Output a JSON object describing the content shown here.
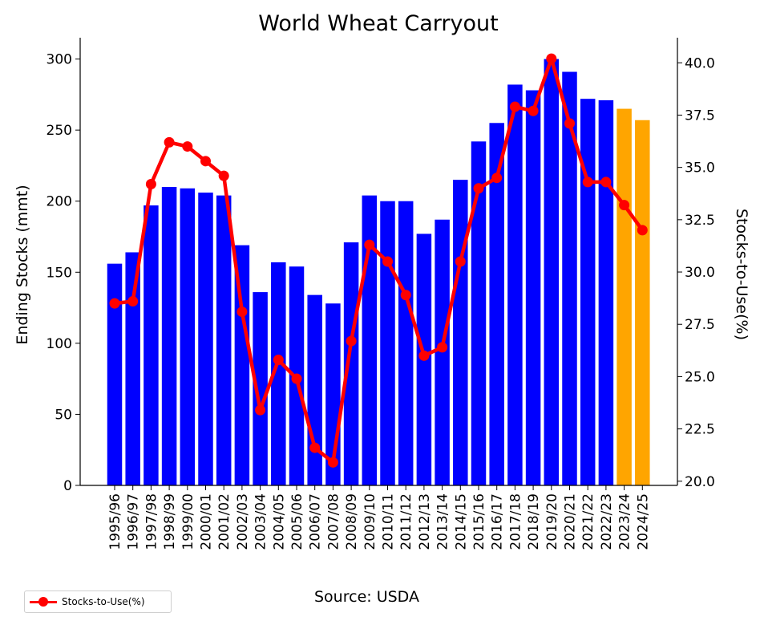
{
  "chart_data": {
    "type": "bar",
    "title": "World Wheat Carryout",
    "ylabel": "Ending Stocks (mmt)",
    "y2label": "Stocks-to-Use(%)",
    "ylim": [
      0,
      315
    ],
    "y2lim": [
      19.8,
      41.2
    ],
    "yticks": [
      "0",
      "50",
      "100",
      "150",
      "200",
      "250",
      "300"
    ],
    "y2ticks": [
      "20.0",
      "22.5",
      "25.0",
      "27.5",
      "30.0",
      "32.5",
      "35.0",
      "37.5",
      "40.0"
    ],
    "categories": [
      "1995/96",
      "1996/97",
      "1997/98",
      "1998/99",
      "1999/00",
      "2000/01",
      "2001/02",
      "2002/03",
      "2003/04",
      "2004/05",
      "2005/06",
      "2006/07",
      "2007/08",
      "2008/09",
      "2009/10",
      "2010/11",
      "2011/12",
      "2012/13",
      "2013/14",
      "2014/15",
      "2015/16",
      "2016/17",
      "2017/18",
      "2018/19",
      "2019/20",
      "2020/21",
      "2021/22",
      "2022/23",
      "2023/24",
      "2024/25"
    ],
    "series": [
      {
        "axis": "left",
        "type": "bar",
        "values": [
          156,
          164,
          197,
          210,
          209,
          206,
          204,
          169,
          136,
          157,
          154,
          134,
          128,
          171,
          204,
          200,
          200,
          177,
          187,
          215,
          242,
          255,
          282,
          278,
          300,
          291,
          272,
          271,
          265,
          257
        ],
        "colors": [
          "#0000ff",
          "#0000ff",
          "#0000ff",
          "#0000ff",
          "#0000ff",
          "#0000ff",
          "#0000ff",
          "#0000ff",
          "#0000ff",
          "#0000ff",
          "#0000ff",
          "#0000ff",
          "#0000ff",
          "#0000ff",
          "#0000ff",
          "#0000ff",
          "#0000ff",
          "#0000ff",
          "#0000ff",
          "#0000ff",
          "#0000ff",
          "#0000ff",
          "#0000ff",
          "#0000ff",
          "#0000ff",
          "#0000ff",
          "#0000ff",
          "#0000ff",
          "#ffa500",
          "#ffa500"
        ]
      },
      {
        "name": "Stocks-to-Use(%)",
        "axis": "right",
        "type": "line",
        "color": "#ff0000",
        "values": [
          28.5,
          28.6,
          34.2,
          36.2,
          36.0,
          35.3,
          34.6,
          28.1,
          23.4,
          25.8,
          24.9,
          21.6,
          20.9,
          26.7,
          31.3,
          30.5,
          28.9,
          26.0,
          26.4,
          30.5,
          34.0,
          34.5,
          37.9,
          37.7,
          40.2,
          37.1,
          34.3,
          34.3,
          33.2,
          32.0
        ]
      }
    ],
    "legend": {
      "placement": "bottom-left",
      "entries": [
        "Stocks-to-Use(%)"
      ]
    },
    "source": "Source: USDA",
    "grid": false
  }
}
